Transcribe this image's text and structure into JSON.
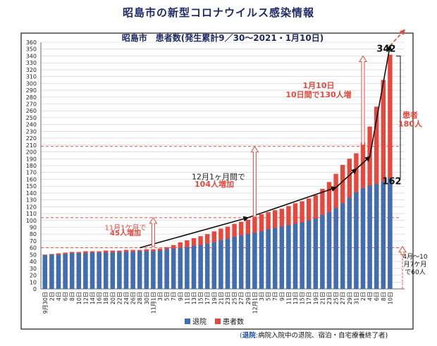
{
  "page": {
    "title": "昭島市の新型コロナウイルス感染情報"
  },
  "chart_data": {
    "type": "bar",
    "title": "昭島市　患者数(発生累計9／30〜2021・1月10日)",
    "xlabel": "",
    "ylabel": "",
    "ylim": [
      0,
      360
    ],
    "y_ticks": [
      0,
      10,
      20,
      30,
      40,
      50,
      60,
      70,
      80,
      90,
      100,
      110,
      120,
      130,
      140,
      150,
      160,
      170,
      180,
      190,
      200,
      210,
      220,
      230,
      240,
      250,
      260,
      270,
      280,
      290,
      300,
      310,
      320,
      330,
      340,
      350,
      360
    ],
    "grid": true,
    "legend_position": "bottom-center",
    "colors": {
      "recovered": "#3f6fb3",
      "patients": "#e8473b",
      "arrow": "#111111",
      "annotation_red": "#e8473b",
      "guide": "#e8473b",
      "frame": "#1a1a1a"
    },
    "categories": [
      "9月30日",
      "2日",
      "4日",
      "6日",
      "8日",
      "10日",
      "12日",
      "14日",
      "16日",
      "18日",
      "20日",
      "22日",
      "24日",
      "26日",
      "28日",
      "30日",
      "11月1日",
      "3日",
      "5日",
      "7日",
      "9日",
      "11日",
      "13日",
      "15日",
      "17日",
      "19日",
      "21日",
      "23日",
      "25日",
      "27日",
      "29日",
      "12月1日",
      "3日",
      "5日",
      "7日",
      "9日",
      "11日",
      "13日",
      "15日",
      "17日",
      "19日",
      "21日",
      "23日",
      "25日",
      "27日",
      "29日",
      "31日",
      "2日",
      "4日",
      "6日",
      "8日",
      "10日"
    ],
    "series": [
      {
        "name": "退院",
        "values": [
          49,
          50,
          50,
          51,
          52,
          52,
          52,
          53,
          53,
          53,
          53,
          54,
          54,
          54,
          55,
          55,
          55,
          56,
          58,
          59,
          60,
          61,
          63,
          64,
          66,
          68,
          71,
          73,
          76,
          78,
          80,
          82,
          84,
          87,
          89,
          91,
          93,
          95,
          97,
          100,
          103,
          108,
          112,
          118,
          125,
          133,
          141,
          147,
          151,
          153,
          157,
          162
        ]
      },
      {
        "name": "患者数",
        "values": [
          50,
          51,
          52,
          53,
          54,
          54,
          55,
          55,
          55,
          56,
          56,
          56,
          57,
          57,
          57,
          58,
          58,
          59,
          61,
          64,
          68,
          71,
          74,
          77,
          80,
          84,
          88,
          91,
          95,
          98,
          101,
          105,
          109,
          112,
          115,
          117,
          121,
          125,
          128,
          132,
          137,
          146,
          156,
          168,
          181,
          190,
          198,
          214,
          237,
          266,
          305,
          342
        ]
      }
    ],
    "annotations": {
      "nov_label": "11月1ケ月で\n45人増加",
      "dec_label_line1": "12月1ヶ月間で",
      "dec_label_line2": "104人増加",
      "jan_label_line1": "1月10日",
      "jan_label_line2": "10日間で130人増",
      "total_label_line1": "患者",
      "total_label_line2": "180人",
      "value_342": "342",
      "value_162": "162",
      "apr_label": "4月〜10\n月7ケ月\nで60人"
    },
    "legend": {
      "recovered": "退院",
      "patients": "患者数"
    },
    "footnote": {
      "prefix": "(",
      "term": "退院",
      "colon": ":",
      "text": "病院入院中の退院、宿泊・自宅療養終了者)"
    }
  }
}
